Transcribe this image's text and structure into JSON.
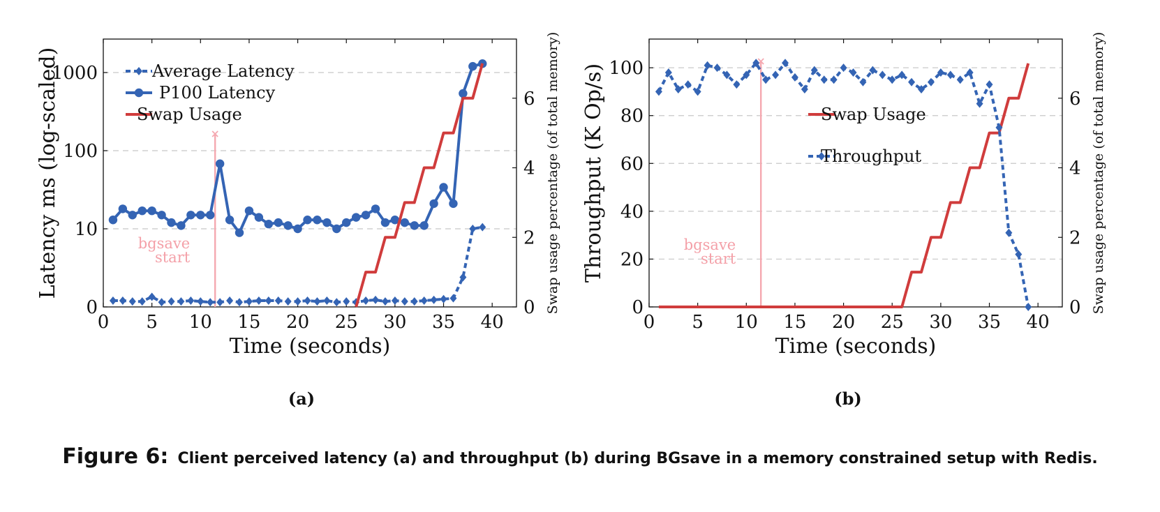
{
  "caption": {
    "label": "Figure 6:",
    "text": "Client perceived latency (a) and throughput (b) during BGsave in a memory constrained setup with Redis."
  },
  "colors": {
    "blue": "#3464b4",
    "red": "#d03c3c",
    "pink": "#f5a8b0",
    "grid": "#c8c8c8"
  },
  "chart_data": [
    {
      "type": "line",
      "subcaption": "(a)",
      "xlabel": "Time (seconds)",
      "ylabel": "Latency ms (log-scaled)",
      "y2label": "Swap usage percentage (of total memory)",
      "xlim": [
        0,
        42.5
      ],
      "xticks": [
        0,
        5,
        10,
        15,
        20,
        25,
        30,
        35,
        40
      ],
      "yscale": "log-with-zero",
      "yticks": [
        0,
        10,
        100,
        1000
      ],
      "ylim_top": 2500,
      "y2lim": [
        0,
        7.7
      ],
      "y2ticks": [
        0,
        2,
        4,
        6
      ],
      "grid": "horizontal-dashed",
      "legend_position": "top-left",
      "annotation": {
        "text_lines": [
          "bgsave",
          "start"
        ],
        "x": 11.5
      },
      "series": [
        {
          "name": "Average Latency",
          "axis": "left",
          "style": "dashed-diamond",
          "x": [
            1,
            2,
            3,
            4,
            5,
            6,
            7,
            8,
            9,
            10,
            11,
            12,
            13,
            14,
            15,
            16,
            17,
            18,
            19,
            20,
            21,
            22,
            23,
            24,
            25,
            26,
            27,
            28,
            29,
            30,
            31,
            32,
            33,
            34,
            35,
            36,
            37,
            38,
            39
          ],
          "y": [
            0.8,
            0.8,
            0.7,
            0.7,
            1.3,
            0.6,
            0.7,
            0.7,
            0.8,
            0.7,
            0.6,
            0.6,
            0.8,
            0.6,
            0.7,
            0.8,
            0.8,
            0.8,
            0.7,
            0.7,
            0.8,
            0.7,
            0.8,
            0.6,
            0.7,
            0.6,
            0.8,
            0.9,
            0.7,
            0.8,
            0.7,
            0.7,
            0.8,
            0.9,
            1.0,
            1.1,
            3.8,
            10.0,
            10.5
          ]
        },
        {
          "name": "P100 Latency",
          "axis": "left",
          "style": "solid-circle",
          "x": [
            1,
            2,
            3,
            4,
            5,
            6,
            7,
            8,
            9,
            10,
            11,
            12,
            13,
            14,
            15,
            16,
            17,
            18,
            19,
            20,
            21,
            22,
            23,
            24,
            25,
            26,
            27,
            28,
            29,
            30,
            31,
            32,
            33,
            34,
            35,
            36,
            37,
            38,
            39
          ],
          "y": [
            13,
            18,
            15,
            17,
            17,
            15,
            12,
            11,
            15,
            15,
            15,
            68,
            13,
            9.5,
            17,
            14,
            11.5,
            12,
            11,
            10,
            13,
            13,
            12,
            10,
            12,
            14,
            15,
            18,
            12,
            13,
            12,
            11,
            11,
            21,
            34,
            21,
            540,
            1200,
            1300
          ]
        },
        {
          "name": "Swap Usage",
          "axis": "right",
          "style": "solid-step",
          "x": [
            26,
            27,
            27,
            28,
            28,
            29,
            29,
            30,
            30,
            31,
            31,
            32,
            32,
            33,
            33,
            34,
            34,
            35,
            35,
            36,
            36,
            37,
            37,
            38,
            38,
            39
          ],
          "y": [
            0,
            1,
            1,
            1,
            1,
            2,
            2,
            2,
            2,
            3,
            3,
            3,
            3,
            4,
            4,
            4,
            4,
            5,
            5,
            5,
            5,
            6,
            6,
            6,
            6,
            7
          ]
        }
      ]
    },
    {
      "type": "line",
      "subcaption": "(b)",
      "xlabel": "Time (seconds)",
      "ylabel": "Throughput (K Op/s)",
      "y2label": "Swap usage percentage (of total memory)",
      "xlim": [
        0,
        42.5
      ],
      "xticks": [
        0,
        5,
        10,
        15,
        20,
        25,
        30,
        35,
        40
      ],
      "ylim": [
        0,
        112
      ],
      "yticks": [
        0,
        20,
        40,
        60,
        80,
        100
      ],
      "y2lim": [
        0,
        7.7
      ],
      "y2ticks": [
        0,
        2,
        4,
        6
      ],
      "grid": "horizontal-dashed",
      "legend_position": "center",
      "annotation": {
        "text_lines": [
          "bgsave",
          "start"
        ],
        "x": 11.5
      },
      "series": [
        {
          "name": "Swap Usage",
          "axis": "right",
          "style": "solid-step",
          "x": [
            1,
            26,
            27,
            27,
            28,
            28,
            29,
            29,
            30,
            30,
            31,
            31,
            32,
            32,
            33,
            33,
            34,
            34,
            35,
            35,
            36,
            36,
            37,
            37,
            38,
            38,
            39
          ],
          "y": [
            0,
            0,
            1,
            1,
            1,
            1,
            2,
            2,
            2,
            2,
            3,
            3,
            3,
            3,
            4,
            4,
            4,
            4,
            5,
            5,
            5,
            5,
            6,
            6,
            6,
            6,
            7
          ]
        },
        {
          "name": "Throughput",
          "axis": "left",
          "style": "dashed-diamond",
          "x": [
            1,
            2,
            3,
            4,
            5,
            6,
            7,
            8,
            9,
            10,
            11,
            12,
            13,
            14,
            15,
            16,
            17,
            18,
            19,
            20,
            21,
            22,
            23,
            24,
            25,
            26,
            27,
            28,
            29,
            30,
            31,
            32,
            33,
            34,
            35,
            36,
            37,
            38,
            39
          ],
          "y": [
            90,
            98,
            91,
            93,
            90,
            101,
            100,
            97,
            93,
            97,
            102,
            95,
            97,
            102,
            96,
            91,
            99,
            95,
            95,
            100,
            98,
            94,
            99,
            97,
            95,
            97,
            94,
            91,
            94,
            98,
            97,
            95,
            98,
            85,
            93,
            75,
            31,
            22,
            0
          ]
        }
      ]
    }
  ]
}
